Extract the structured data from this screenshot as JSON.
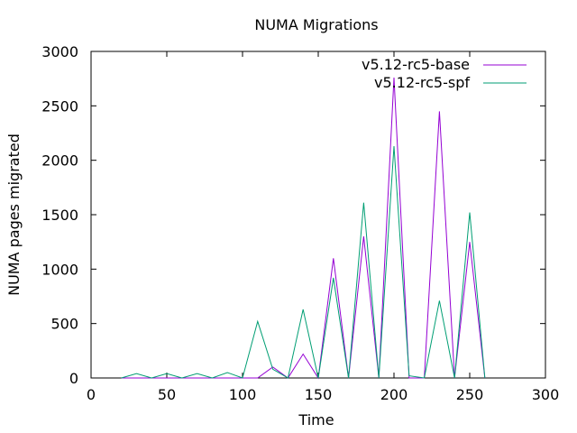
{
  "chart_data": {
    "type": "line",
    "title": "NUMA Migrations",
    "xlabel": "Time",
    "ylabel": "NUMA pages migrated",
    "xlim": [
      0,
      300
    ],
    "ylim": [
      0,
      3000
    ],
    "xticks": [
      0,
      50,
      100,
      150,
      200,
      250,
      300
    ],
    "yticks": [
      0,
      500,
      1000,
      1500,
      2000,
      2500,
      3000
    ],
    "grid": false,
    "legend_position": "top-right",
    "series": [
      {
        "name": "v5.12-rc5-base",
        "color": "#9400d3",
        "x": [
          20,
          30,
          40,
          50,
          60,
          70,
          80,
          90,
          100,
          110,
          120,
          130,
          140,
          150,
          160,
          170,
          180,
          190,
          200,
          210,
          220,
          230,
          240,
          250,
          260
        ],
        "y": [
          0,
          0,
          0,
          0,
          0,
          0,
          0,
          0,
          0,
          0,
          100,
          0,
          220,
          0,
          1100,
          0,
          1300,
          0,
          2760,
          0,
          0,
          2450,
          0,
          1250,
          0
        ]
      },
      {
        "name": "v5.12-rc5-spf",
        "color": "#009e73",
        "x": [
          20,
          30,
          40,
          50,
          60,
          70,
          80,
          90,
          100,
          110,
          120,
          130,
          140,
          150,
          160,
          170,
          180,
          190,
          200,
          210,
          220,
          230,
          240,
          250,
          260
        ],
        "y": [
          0,
          40,
          0,
          40,
          0,
          40,
          0,
          50,
          0,
          520,
          80,
          0,
          630,
          0,
          920,
          0,
          1610,
          0,
          2130,
          20,
          0,
          710,
          0,
          1520,
          0
        ]
      }
    ]
  }
}
